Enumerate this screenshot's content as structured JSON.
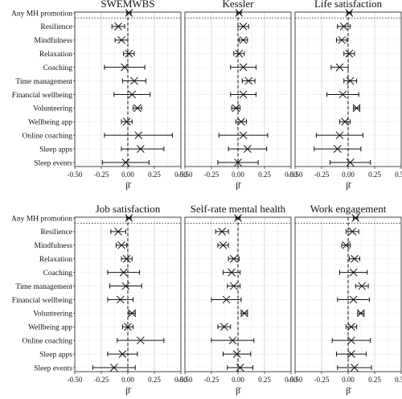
{
  "chart_data": {
    "type": "forest",
    "x_ticks": [
      "-0.50",
      "-0.25",
      "0.00",
      "0.25",
      "0.50"
    ],
    "xlim": [
      -0.5,
      0.5
    ],
    "xlabel": "β̄",
    "categories": [
      "Any MH promotion",
      "Resilience",
      "Mindfulness",
      "Relaxation",
      "Coaching",
      "Time management",
      "Financial wellbeing",
      "Volunteering",
      "Wellbeing app",
      "Online coaching",
      "Sleep apps",
      "Sleep events"
    ],
    "panels": [
      {
        "title": "SWEMWBS",
        "estimates": [
          0.01,
          -0.09,
          -0.06,
          0.01,
          -0.03,
          0.06,
          0.04,
          0.09,
          -0.01,
          0.1,
          0.12,
          -0.02
        ],
        "ci_low": [
          -0.01,
          -0.15,
          -0.12,
          -0.04,
          -0.22,
          -0.05,
          -0.13,
          0.05,
          -0.06,
          -0.22,
          -0.06,
          -0.24
        ],
        "ci_high": [
          0.03,
          -0.03,
          0.0,
          0.06,
          0.16,
          0.17,
          0.21,
          0.13,
          0.04,
          0.42,
          0.34,
          0.2
        ]
      },
      {
        "title": "Kessler",
        "estimates": [
          0.01,
          0.05,
          0.05,
          0.01,
          0.05,
          0.1,
          0.05,
          -0.02,
          0.03,
          0.05,
          0.09,
          0.0
        ],
        "ci_low": [
          -0.01,
          0.0,
          0.01,
          -0.04,
          -0.07,
          0.04,
          -0.07,
          -0.06,
          -0.02,
          -0.18,
          -0.09,
          -0.19
        ],
        "ci_high": [
          0.03,
          0.1,
          0.09,
          0.06,
          0.17,
          0.16,
          0.17,
          0.02,
          0.08,
          0.28,
          0.27,
          0.19
        ]
      },
      {
        "title": "Life satisfaction",
        "estimates": [
          0.01,
          -0.04,
          -0.06,
          0.01,
          -0.08,
          0.02,
          -0.05,
          0.08,
          -0.03,
          -0.08,
          -0.1,
          0.02
        ],
        "ci_low": [
          -0.01,
          -0.1,
          -0.11,
          -0.04,
          -0.16,
          -0.04,
          -0.2,
          0.05,
          -0.08,
          -0.3,
          -0.32,
          -0.17
        ],
        "ci_high": [
          0.03,
          0.02,
          -0.01,
          0.06,
          0.0,
          0.08,
          0.1,
          0.11,
          0.02,
          0.14,
          0.12,
          0.21
        ]
      },
      {
        "title": "Job satisfaction",
        "estimates": [
          0.01,
          -0.09,
          -0.06,
          -0.01,
          -0.04,
          -0.02,
          -0.07,
          0.04,
          0.0,
          0.12,
          -0.05,
          -0.13
        ],
        "ci_low": [
          -0.01,
          -0.16,
          -0.11,
          -0.06,
          -0.19,
          -0.17,
          -0.19,
          0.01,
          -0.05,
          -0.1,
          -0.19,
          -0.33
        ],
        "ci_high": [
          0.03,
          -0.02,
          -0.01,
          0.04,
          0.11,
          0.13,
          0.05,
          0.07,
          0.05,
          0.34,
          0.09,
          0.07
        ]
      },
      {
        "title": "Self-rate mental health",
        "estimates": [
          0.0,
          -0.15,
          -0.14,
          -0.04,
          -0.06,
          -0.04,
          -0.11,
          0.06,
          -0.13,
          -0.05,
          -0.01,
          0.02
        ],
        "ci_low": [
          -0.02,
          -0.21,
          -0.19,
          -0.09,
          -0.14,
          -0.1,
          -0.25,
          0.03,
          -0.19,
          -0.25,
          -0.14,
          -0.1
        ],
        "ci_high": [
          0.02,
          -0.09,
          -0.09,
          0.01,
          0.02,
          0.02,
          0.03,
          0.09,
          -0.07,
          0.15,
          0.12,
          0.14
        ]
      },
      {
        "title": "Work engagement",
        "estimates": [
          0.07,
          0.04,
          -0.02,
          0.06,
          0.05,
          0.13,
          0.05,
          0.12,
          0.03,
          0.03,
          0.03,
          0.06
        ],
        "ci_low": [
          0.05,
          -0.02,
          -0.06,
          0.01,
          -0.08,
          0.07,
          -0.1,
          0.09,
          -0.02,
          -0.15,
          -0.11,
          -0.1
        ],
        "ci_high": [
          0.09,
          0.1,
          0.02,
          0.11,
          0.18,
          0.19,
          0.2,
          0.15,
          0.08,
          0.21,
          0.17,
          0.22
        ]
      }
    ]
  }
}
